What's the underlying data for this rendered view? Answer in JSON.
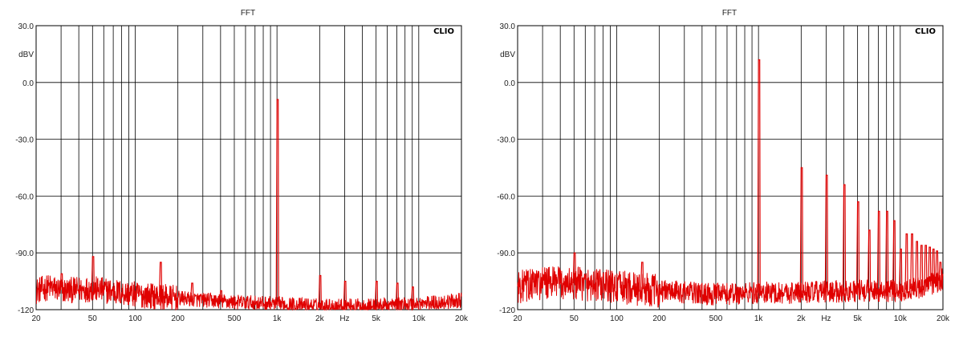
{
  "chart_data": [
    {
      "type": "line",
      "title": "FFT",
      "brand": "CLIO",
      "ylabel": "dBV",
      "xlabel": "Hz",
      "xscale": "log",
      "xlim": [
        20,
        20000
      ],
      "ylim": [
        -120,
        30
      ],
      "yticks": [
        "30.0",
        "0.0",
        "-30.0",
        "-60.0",
        "-90.0",
        "-120"
      ],
      "xticks": [
        {
          "v": 20,
          "label": "20"
        },
        {
          "v": 50,
          "label": "50"
        },
        {
          "v": 100,
          "label": "100"
        },
        {
          "v": 200,
          "label": "200"
        },
        {
          "v": 500,
          "label": "500"
        },
        {
          "v": 1000,
          "label": "1k"
        },
        {
          "v": 2000,
          "label": "2k"
        },
        {
          "v": 3000,
          "label": "Hz"
        },
        {
          "v": 5000,
          "label": "5k"
        },
        {
          "v": 10000,
          "label": "10k"
        },
        {
          "v": 20000,
          "label": "20k"
        }
      ],
      "grid": true,
      "line_color": "#e00000",
      "noise_floor": [
        [
          20,
          -110
        ],
        [
          25,
          -108
        ],
        [
          30,
          -110
        ],
        [
          50,
          -109
        ],
        [
          100,
          -112
        ],
        [
          200,
          -114
        ],
        [
          500,
          -116
        ],
        [
          1000,
          -117
        ],
        [
          2000,
          -118
        ],
        [
          5000,
          -118
        ],
        [
          10000,
          -117
        ],
        [
          15000,
          -116
        ],
        [
          20000,
          -115
        ]
      ],
      "peaks": [
        {
          "f": 30,
          "db": -101
        },
        {
          "f": 50,
          "db": -92
        },
        {
          "f": 150,
          "db": -95
        },
        {
          "f": 250,
          "db": -106
        },
        {
          "f": 400,
          "db": -110
        },
        {
          "f": 1000,
          "db": -9
        },
        {
          "f": 2000,
          "db": -102
        },
        {
          "f": 3000,
          "db": -105
        },
        {
          "f": 5000,
          "db": -105
        },
        {
          "f": 7000,
          "db": -106
        },
        {
          "f": 9000,
          "db": -108
        }
      ]
    },
    {
      "type": "line",
      "title": "FFT",
      "brand": "CLIO",
      "ylabel": "dBV",
      "xlabel": "Hz",
      "xscale": "log",
      "xlim": [
        20,
        20000
      ],
      "ylim": [
        -120,
        30
      ],
      "yticks": [
        "30.0",
        "0.0",
        "-30.0",
        "-60.0",
        "-90.0",
        "-120"
      ],
      "xticks": [
        {
          "v": 20,
          "label": "20"
        },
        {
          "v": 50,
          "label": "50"
        },
        {
          "v": 100,
          "label": "100"
        },
        {
          "v": 200,
          "label": "200"
        },
        {
          "v": 500,
          "label": "500"
        },
        {
          "v": 1000,
          "label": "1k"
        },
        {
          "v": 2000,
          "label": "2k"
        },
        {
          "v": 3000,
          "label": "Hz"
        },
        {
          "v": 5000,
          "label": "5k"
        },
        {
          "v": 10000,
          "label": "10k"
        },
        {
          "v": 20000,
          "label": "20k"
        }
      ],
      "grid": true,
      "line_color": "#e00000",
      "noise_floor": [
        [
          20,
          -108
        ],
        [
          30,
          -106
        ],
        [
          50,
          -106
        ],
        [
          100,
          -108
        ],
        [
          200,
          -110
        ],
        [
          500,
          -112
        ],
        [
          1000,
          -111
        ],
        [
          2000,
          -111
        ],
        [
          5000,
          -110
        ],
        [
          10000,
          -110
        ],
        [
          15000,
          -108
        ],
        [
          20000,
          -104
        ]
      ],
      "peaks": [
        {
          "f": 50,
          "db": -90
        },
        {
          "f": 150,
          "db": -95
        },
        {
          "f": 1000,
          "db": 12
        },
        {
          "f": 2000,
          "db": -45
        },
        {
          "f": 3000,
          "db": -49
        },
        {
          "f": 4000,
          "db": -54
        },
        {
          "f": 5000,
          "db": -63
        },
        {
          "f": 6000,
          "db": -78
        },
        {
          "f": 7000,
          "db": -68
        },
        {
          "f": 8000,
          "db": -68
        },
        {
          "f": 9000,
          "db": -73
        },
        {
          "f": 10000,
          "db": -88
        },
        {
          "f": 11000,
          "db": -80
        },
        {
          "f": 12000,
          "db": -80
        },
        {
          "f": 13000,
          "db": -84
        },
        {
          "f": 14000,
          "db": -86
        },
        {
          "f": 15000,
          "db": -86
        },
        {
          "f": 16000,
          "db": -87
        },
        {
          "f": 17000,
          "db": -88
        },
        {
          "f": 18000,
          "db": -89
        },
        {
          "f": 19000,
          "db": -95
        }
      ]
    }
  ]
}
